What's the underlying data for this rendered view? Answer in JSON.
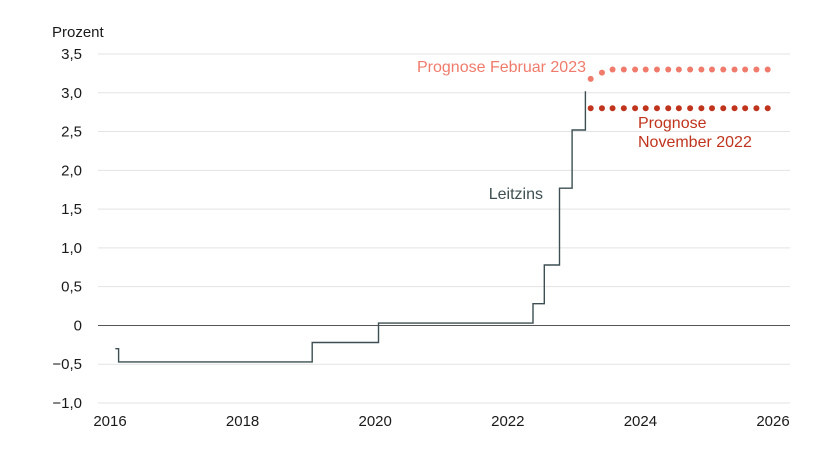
{
  "chart_data": {
    "type": "line",
    "ylabel": "Prozent",
    "xlim": [
      2016,
      2026
    ],
    "ylim": [
      -1.0,
      3.5
    ],
    "grid": true,
    "y_ticks": [
      -1.0,
      -0.5,
      0,
      0.5,
      1.0,
      1.5,
      2.0,
      2.5,
      3.0,
      3.5
    ],
    "y_tick_labels": [
      "−1,0",
      "−0,5",
      "0",
      "0,5",
      "1,0",
      "1,5",
      "2,0",
      "2,5",
      "3,0",
      "3,5"
    ],
    "x_ticks": [
      2016,
      2018,
      2020,
      2022,
      2024,
      2026
    ],
    "x_tick_labels": [
      "2016",
      "2018",
      "2020",
      "2022",
      "2024",
      "2026"
    ],
    "series": [
      {
        "name": "Leitzins",
        "style": "step",
        "color": "#3d4f52",
        "points": [
          [
            2016.08,
            -0.3
          ],
          [
            2016.13,
            -0.3
          ],
          [
            2016.13,
            -0.47
          ],
          [
            2019.05,
            -0.47
          ],
          [
            2019.05,
            -0.22
          ],
          [
            2020.05,
            -0.22
          ],
          [
            2020.05,
            0.03
          ],
          [
            2022.38,
            0.03
          ],
          [
            2022.38,
            0.28
          ],
          [
            2022.55,
            0.28
          ],
          [
            2022.55,
            0.78
          ],
          [
            2022.78,
            0.78
          ],
          [
            2022.78,
            1.77
          ],
          [
            2022.97,
            1.77
          ],
          [
            2022.97,
            2.52
          ],
          [
            2023.17,
            2.52
          ],
          [
            2023.17,
            3.02
          ]
        ]
      },
      {
        "name": "Prognose Februar 2023",
        "style": "dots",
        "color": "#f07b6c",
        "x": [
          2023.25,
          2023.42,
          2023.58,
          2023.75,
          2023.92,
          2024.08,
          2024.25,
          2024.42,
          2024.58,
          2024.75,
          2024.92,
          2025.08,
          2025.25,
          2025.42,
          2025.58,
          2025.75,
          2025.92
        ],
        "y": [
          3.18,
          3.26,
          3.3,
          3.3,
          3.3,
          3.3,
          3.3,
          3.3,
          3.3,
          3.3,
          3.3,
          3.3,
          3.3,
          3.3,
          3.3,
          3.3,
          3.3
        ]
      },
      {
        "name": "Prognose November 2022",
        "style": "dots",
        "color": "#c0341d",
        "x": [
          2023.25,
          2023.42,
          2023.58,
          2023.75,
          2023.92,
          2024.08,
          2024.25,
          2024.42,
          2024.58,
          2024.75,
          2024.92,
          2025.08,
          2025.25,
          2025.42,
          2025.58,
          2025.75,
          2025.92
        ],
        "y": [
          2.8,
          2.8,
          2.8,
          2.8,
          2.8,
          2.8,
          2.8,
          2.8,
          2.8,
          2.8,
          2.8,
          2.8,
          2.8,
          2.8,
          2.8,
          2.8,
          2.8
        ]
      }
    ],
    "annotations": [
      {
        "text": "Leitzins",
        "series": "Leitzins"
      },
      {
        "text": "Prognose Februar 2023",
        "series": "Prognose Februar 2023"
      },
      {
        "text": "Prognose",
        "series": "Prognose November 2022"
      },
      {
        "text": "November 2022",
        "series": "Prognose November 2022"
      }
    ]
  }
}
